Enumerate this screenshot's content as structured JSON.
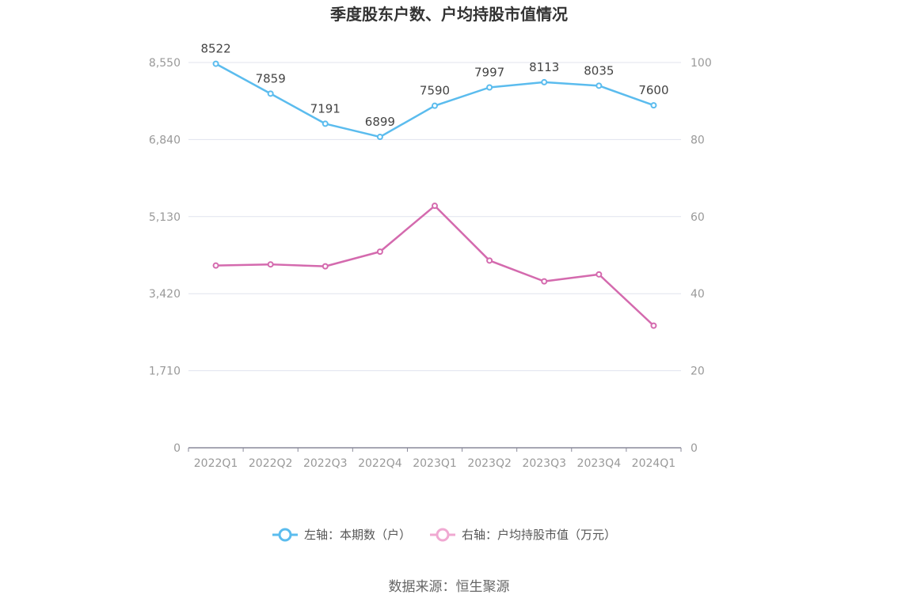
{
  "chart_data": {
    "type": "line",
    "title": "季度股东户数、户均持股市值情况",
    "categories": [
      "2022Q1",
      "2022Q2",
      "2022Q3",
      "2022Q4",
      "2023Q1",
      "2023Q2",
      "2023Q3",
      "2023Q4",
      "2024Q1"
    ],
    "series": [
      {
        "name": "左轴：本期数（户）",
        "axis": "left",
        "color": "#5bbcee",
        "values": [
          8522,
          7859,
          7191,
          6899,
          7590,
          7997,
          8113,
          8035,
          7600
        ],
        "labels_shown": true
      },
      {
        "name": "右轴：户均持股市值（万元）",
        "axis": "right",
        "color": "#d46aae",
        "values": [
          47.3,
          47.6,
          47.1,
          50.9,
          62.8,
          48.6,
          43.2,
          45.0,
          31.7
        ],
        "labels_shown": false
      }
    ],
    "left_axis": {
      "min": 0,
      "max": 8550,
      "ticks": [
        "0",
        "1,710",
        "3,420",
        "5,130",
        "6,840",
        "8,550"
      ]
    },
    "right_axis": {
      "min": 0,
      "max": 100,
      "ticks": [
        "0",
        "20",
        "40",
        "60",
        "80",
        "100"
      ]
    },
    "grid": true,
    "legend_position": "bottom",
    "legend_items": [
      "左轴：本期数（户）",
      "右轴：户均持股市值（万元）"
    ],
    "legend_colors": [
      "#5bbcee",
      "#f0a9d2"
    ]
  },
  "source_text": "数据来源：恒生聚源"
}
